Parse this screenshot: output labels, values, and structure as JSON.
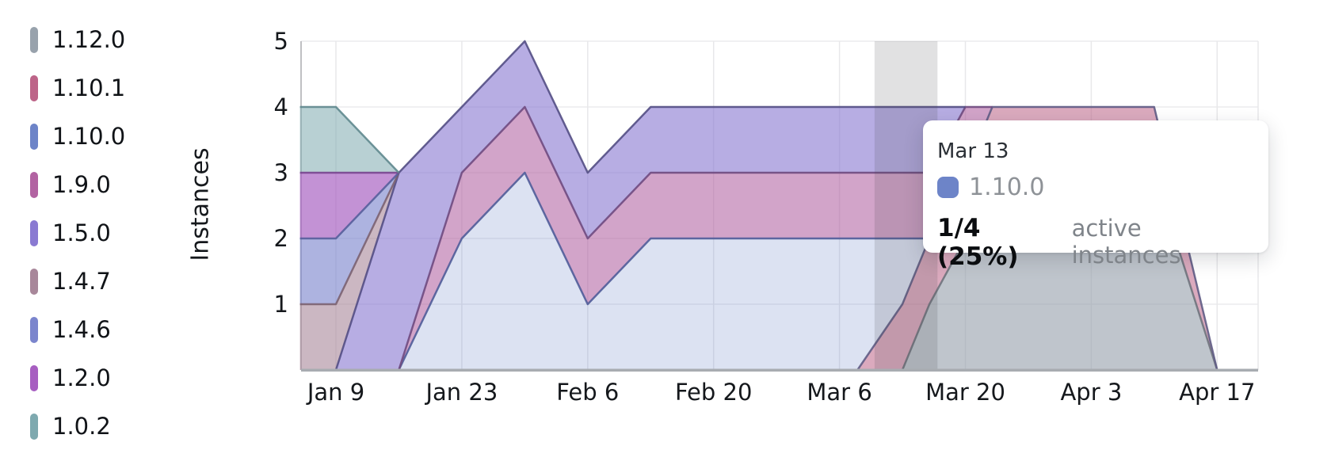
{
  "tooltip": {
    "date": "Mar 13",
    "series": "1.10.0",
    "swatch_color": "#6d84c8",
    "value": "1/4 (25%)",
    "value_suffix": "active instances"
  },
  "chart_data": {
    "type": "area",
    "subtype": "stacked-area",
    "title": "",
    "xlabel": "",
    "ylabel": "Instances",
    "x_unit": "days since Jan 1 (0-based)",
    "ylim": [
      0,
      5
    ],
    "y_ticks": [
      1,
      2,
      3,
      4,
      5
    ],
    "x_ticks": [
      {
        "label": "Jan 9",
        "day": 8
      },
      {
        "label": "Jan 23",
        "day": 22
      },
      {
        "label": "Feb 6",
        "day": 36
      },
      {
        "label": "Feb 20",
        "day": 50
      },
      {
        "label": "Mar 6",
        "day": 64
      },
      {
        "label": "Mar 20",
        "day": 78
      },
      {
        "label": "Apr 3",
        "day": 92
      },
      {
        "label": "Apr 17",
        "day": 106
      }
    ],
    "x_domain": [
      4,
      106
    ],
    "grid": true,
    "legend_position": "left",
    "hover": {
      "date": "Mar 13",
      "band_day_range": [
        67.9,
        74.9
      ]
    },
    "series": [
      {
        "label": "1.12.0",
        "color": "#98a2ac",
        "line_color": "#6f737d",
        "fill_opacity": 0.62,
        "points": [
          [
            4,
            0
          ],
          [
            71,
            0
          ],
          [
            74,
            1
          ],
          [
            78,
            2
          ],
          [
            81,
            3
          ],
          [
            99,
            3
          ],
          [
            106,
            0
          ]
        ]
      },
      {
        "label": "1.10.1",
        "color": "#bd6488",
        "line_color": "#5f5c85",
        "fill_opacity": 0.55,
        "points": [
          [
            4,
            0
          ],
          [
            66,
            0
          ],
          [
            71,
            1
          ],
          [
            99,
            1
          ],
          [
            106,
            0
          ]
        ]
      },
      {
        "label": "1.10.0",
        "color": "#6d84c8",
        "line_color": "#4f5c99",
        "fill_opacity": 0.24,
        "points": [
          [
            4,
            0
          ],
          [
            15,
            0
          ],
          [
            22,
            2
          ],
          [
            29,
            3
          ],
          [
            36,
            1
          ],
          [
            43,
            2
          ],
          [
            66,
            2
          ],
          [
            71,
            1
          ],
          [
            74,
            0
          ]
        ]
      },
      {
        "label": "1.9.0",
        "color": "#b263a2",
        "line_color": "#6f4a80",
        "fill_opacity": 0.58,
        "points": [
          [
            4,
            0
          ],
          [
            15,
            0
          ],
          [
            22,
            1
          ],
          [
            78,
            1
          ],
          [
            81,
            0
          ]
        ]
      },
      {
        "label": "1.5.0",
        "color": "#8a7ad2",
        "line_color": "#534e84",
        "fill_opacity": 0.62,
        "points": [
          [
            4,
            0
          ],
          [
            8,
            0
          ],
          [
            15,
            3
          ],
          [
            22,
            1
          ],
          [
            74,
            1
          ],
          [
            78,
            0
          ]
        ]
      },
      {
        "label": "1.4.7",
        "color": "#a8879a",
        "line_color": "#7b6271",
        "fill_opacity": 0.6,
        "points": [
          [
            4,
            1
          ],
          [
            8,
            1
          ],
          [
            15,
            0
          ]
        ]
      },
      {
        "label": "1.4.6",
        "color": "#7b85cd",
        "line_color": "#565e9b",
        "fill_opacity": 0.62,
        "points": [
          [
            4,
            1
          ],
          [
            8,
            1
          ],
          [
            15,
            0
          ]
        ]
      },
      {
        "label": "1.2.0",
        "color": "#a75ec1",
        "line_color": "#78458f",
        "fill_opacity": 0.68,
        "points": [
          [
            4,
            1
          ],
          [
            8,
            1
          ],
          [
            15,
            0
          ]
        ]
      },
      {
        "label": "1.0.2",
        "color": "#7ea9af",
        "line_color": "#5f888e",
        "fill_opacity": 0.55,
        "points": [
          [
            4,
            1
          ],
          [
            8,
            1
          ],
          [
            15,
            0
          ]
        ]
      }
    ]
  }
}
